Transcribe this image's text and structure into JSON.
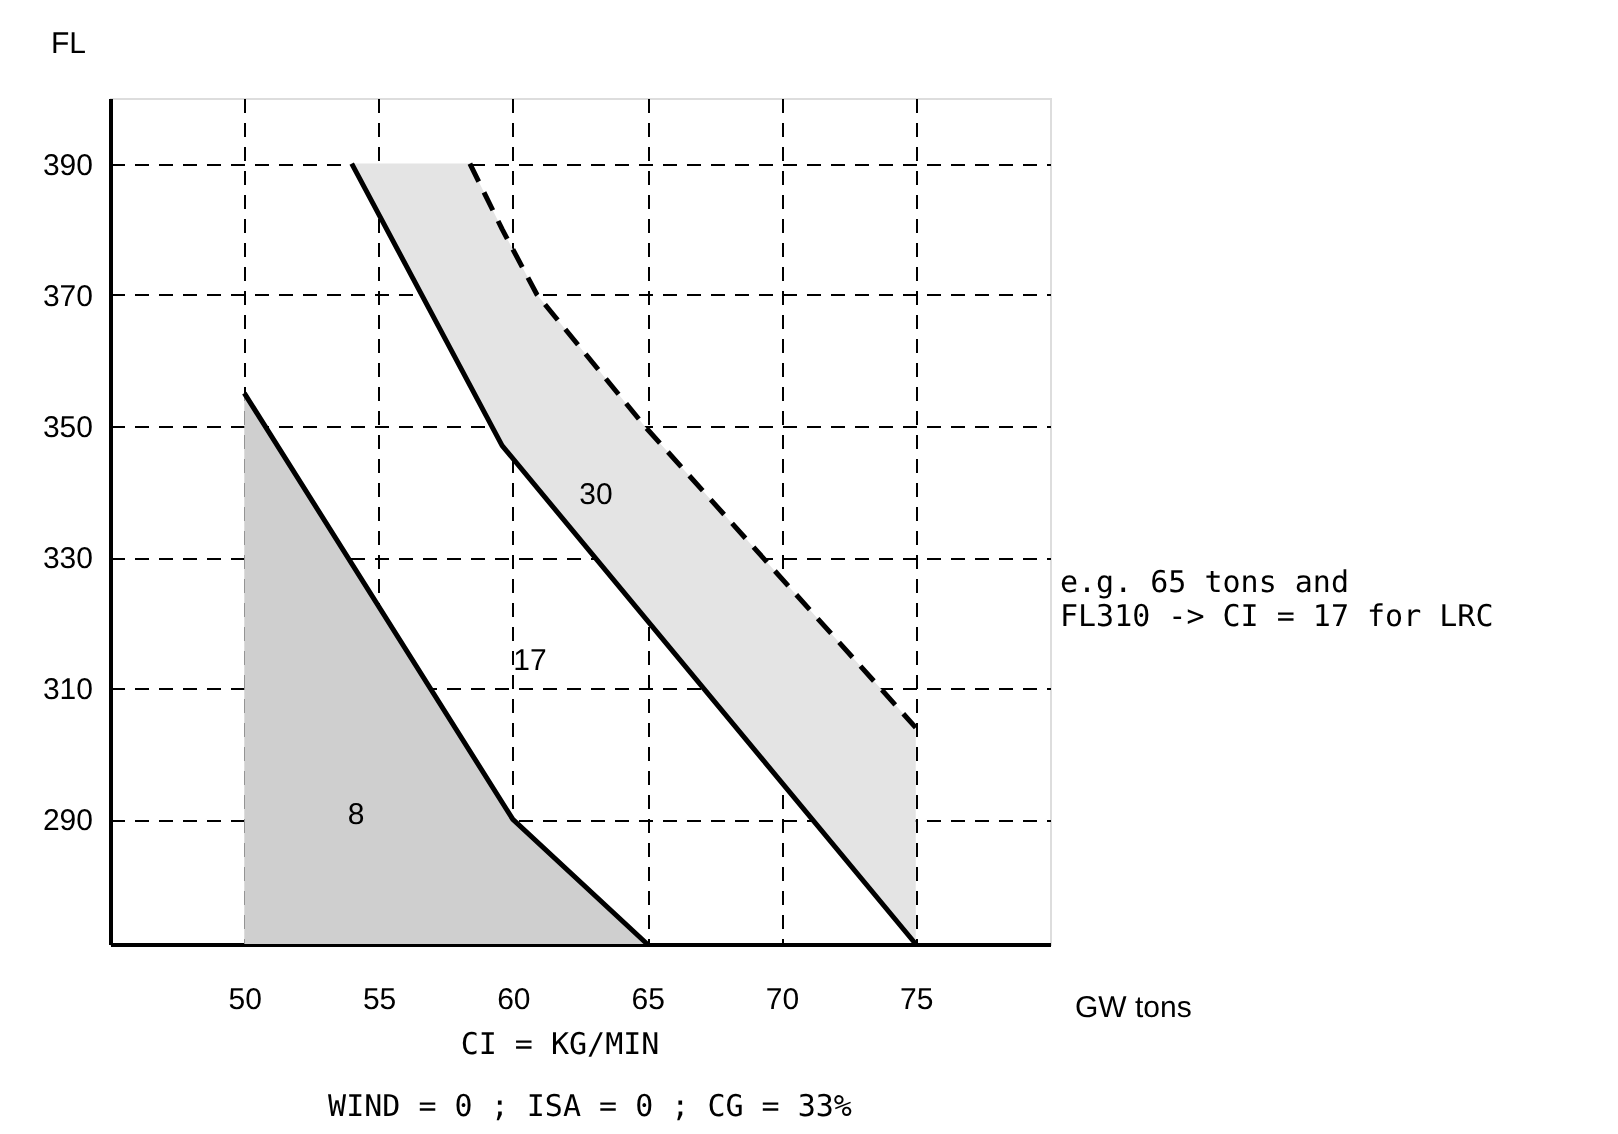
{
  "chart_data": {
    "type": "line",
    "xlabel": "GW tons",
    "ylabel": "FL",
    "xlim": [
      45,
      80
    ],
    "ylim": [
      271,
      400
    ],
    "xticks": [
      50,
      55,
      60,
      65,
      70,
      75
    ],
    "yticks": [
      290,
      310,
      330,
      350,
      370,
      390
    ],
    "grid": true,
    "series": [
      {
        "type": "area",
        "color": "#cfcfcf",
        "x": [
          50,
          60,
          65
        ],
        "values": [
          355,
          290,
          271
        ]
      },
      {
        "color": "#000000",
        "x": [
          54,
          59.6,
          75
        ],
        "values": [
          390,
          347,
          271
        ],
        "line_style": "solid"
      },
      {
        "color": "#000000",
        "x": [
          54,
          58.4,
          59.6,
          60.9,
          64.9,
          75
        ],
        "values": [
          null,
          390,
          380,
          370,
          350,
          304
        ],
        "line_style": "dashed",
        "lower": [
          390,
          356,
          347,
          341,
          321,
          271
        ],
        "upper": [
          390,
          390,
          380,
          370,
          350,
          304
        ]
      }
    ],
    "annotations": [
      "8",
      "17",
      "30",
      "e.g. 65 tons and\nFL310 -> CI = 17 for LRC",
      "CI = KG/MIN",
      "WIND = 0   ;   ISA = 0   ;   CG = 33%"
    ]
  }
}
